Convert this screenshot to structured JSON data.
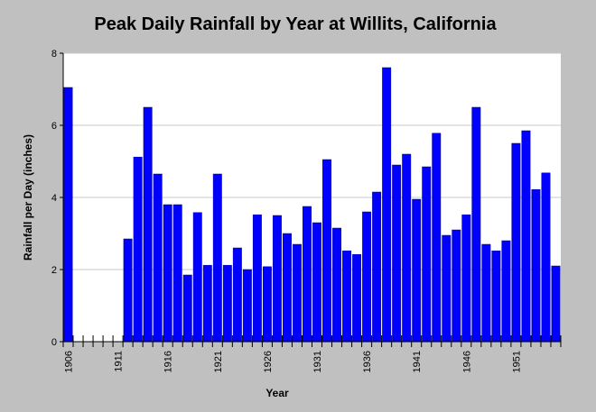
{
  "colors": {
    "background": "#c0c0c0",
    "plot_area": "#ffffff",
    "bar": "#0000ff",
    "bar_outline": "#0000a0",
    "grid": "#c8c8c8",
    "axis": "#000000"
  },
  "chart_data": {
    "type": "bar",
    "title": "Peak Daily Rainfall by Year at Willits, California",
    "xlabel": "Year",
    "ylabel": "Rainfall per Day (inches)",
    "ylim": [
      0,
      8
    ],
    "yticks": [
      0,
      2,
      4,
      6,
      8
    ],
    "xlim": [
      1906,
      1955
    ],
    "xtick_labels": [
      "1906",
      "1911",
      "1916",
      "1921",
      "1926",
      "1931",
      "1936",
      "1941",
      "1946",
      "1951"
    ],
    "grid": "horizontal",
    "legend": "none",
    "categories": [
      1906,
      1907,
      1908,
      1909,
      1910,
      1911,
      1912,
      1913,
      1914,
      1915,
      1916,
      1917,
      1918,
      1919,
      1920,
      1921,
      1922,
      1923,
      1924,
      1925,
      1926,
      1927,
      1928,
      1929,
      1930,
      1931,
      1932,
      1933,
      1934,
      1935,
      1936,
      1937,
      1938,
      1939,
      1940,
      1941,
      1942,
      1943,
      1944,
      1945,
      1946,
      1947,
      1948,
      1949,
      1950,
      1951,
      1952,
      1953,
      1954,
      1955
    ],
    "values": [
      7.05,
      null,
      null,
      null,
      null,
      null,
      2.85,
      5.12,
      6.5,
      4.65,
      3.8,
      3.8,
      1.85,
      3.58,
      2.12,
      4.65,
      2.12,
      2.6,
      2.0,
      3.52,
      2.08,
      3.5,
      3.0,
      2.7,
      3.75,
      3.3,
      5.05,
      3.15,
      2.52,
      2.42,
      3.6,
      4.15,
      7.6,
      4.9,
      5.2,
      3.95,
      4.85,
      5.78,
      2.95,
      3.1,
      3.52,
      6.5,
      2.7,
      2.52,
      2.8,
      5.5,
      5.85,
      4.22,
      4.68,
      2.1
    ]
  }
}
